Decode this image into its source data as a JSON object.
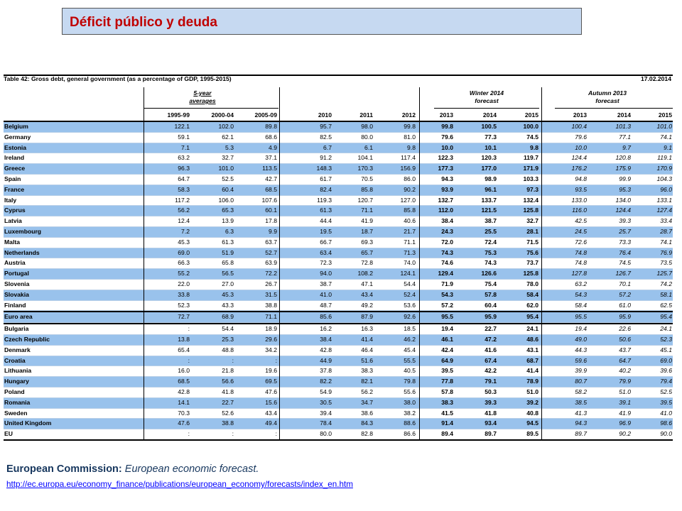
{
  "title": "Déficit público y deuda",
  "table": {
    "name": "Table 42:   Gross debt, general government (as a percentage of GDP, 1995-2015)",
    "date": "17.02.2014",
    "group_5yr": "5-year",
    "group_5yr_2": "averages",
    "group_winter": "Winter 2014",
    "group_winter_2": "forecast",
    "group_autumn": "Autumn 2013",
    "group_autumn_2": "forecast",
    "columns": [
      "1995-99",
      "2000-04",
      "2005-09",
      "2010",
      "2011",
      "2012",
      "2013",
      "2014",
      "2015",
      "2013",
      "2014",
      "2015"
    ],
    "rows": [
      {
        "name": "Belgium",
        "vals": [
          "122.1",
          "102.0",
          "89.8",
          "95.7",
          "98.0",
          "99.8",
          "99.8",
          "100.5",
          "100.0",
          "100.4",
          "101.3",
          "101.0"
        ]
      },
      {
        "name": "Germany",
        "vals": [
          "59.1",
          "62.1",
          "68.6",
          "82.5",
          "80.0",
          "81.0",
          "79.6",
          "77.3",
          "74.5",
          "79.6",
          "77.1",
          "74.1"
        ]
      },
      {
        "name": "Estonia",
        "vals": [
          "7.1",
          "5.3",
          "4.9",
          "6.7",
          "6.1",
          "9.8",
          "10.0",
          "10.1",
          "9.8",
          "10.0",
          "9.7",
          "9.1"
        ]
      },
      {
        "name": "Ireland",
        "vals": [
          "63.2",
          "32.7",
          "37.1",
          "91.2",
          "104.1",
          "117.4",
          "122.3",
          "120.3",
          "119.7",
          "124.4",
          "120.8",
          "119.1"
        ]
      },
      {
        "name": "Greece",
        "vals": [
          "96.3",
          "101.0",
          "113.5",
          "148.3",
          "170.3",
          "156.9",
          "177.3",
          "177.0",
          "171.9",
          "176.2",
          "175.9",
          "170.9"
        ]
      },
      {
        "name": "Spain",
        "vals": [
          "64.7",
          "52.5",
          "42.7",
          "61.7",
          "70.5",
          "86.0",
          "94.3",
          "98.9",
          "103.3",
          "94.8",
          "99.9",
          "104.3"
        ]
      },
      {
        "name": "France",
        "vals": [
          "58.3",
          "60.4",
          "68.5",
          "82.4",
          "85.8",
          "90.2",
          "93.9",
          "96.1",
          "97.3",
          "93.5",
          "95.3",
          "96.0"
        ]
      },
      {
        "name": "Italy",
        "vals": [
          "117.2",
          "106.0",
          "107.6",
          "119.3",
          "120.7",
          "127.0",
          "132.7",
          "133.7",
          "132.4",
          "133.0",
          "134.0",
          "133.1"
        ]
      },
      {
        "name": "Cyprus",
        "vals": [
          "56.2",
          "65.3",
          "60.1",
          "61.3",
          "71.1",
          "85.8",
          "112.0",
          "121.5",
          "125.8",
          "116.0",
          "124.4",
          "127.4"
        ]
      },
      {
        "name": "Latvia",
        "vals": [
          "12.4",
          "13.9",
          "17.8",
          "44.4",
          "41.9",
          "40.6",
          "38.4",
          "38.7",
          "32.7",
          "42.5",
          "39.3",
          "33.4"
        ]
      },
      {
        "name": "Luxembourg",
        "vals": [
          "7.2",
          "6.3",
          "9.9",
          "19.5",
          "18.7",
          "21.7",
          "24.3",
          "25.5",
          "28.1",
          "24.5",
          "25.7",
          "28.7"
        ]
      },
      {
        "name": "Malta",
        "vals": [
          "45.3",
          "61.3",
          "63.7",
          "66.7",
          "69.3",
          "71.1",
          "72.0",
          "72.4",
          "71.5",
          "72.6",
          "73.3",
          "74.1"
        ]
      },
      {
        "name": "Netherlands",
        "vals": [
          "69.0",
          "51.9",
          "52.7",
          "63.4",
          "65.7",
          "71.3",
          "74.3",
          "75.3",
          "75.6",
          "74.8",
          "76.4",
          "76.9"
        ]
      },
      {
        "name": "Austria",
        "vals": [
          "66.3",
          "65.8",
          "63.9",
          "72.3",
          "72.8",
          "74.0",
          "74.6",
          "74.3",
          "73.7",
          "74.8",
          "74.5",
          "73.5"
        ]
      },
      {
        "name": "Portugal",
        "vals": [
          "55.2",
          "56.5",
          "72.2",
          "94.0",
          "108.2",
          "124.1",
          "129.4",
          "126.6",
          "125.8",
          "127.8",
          "126.7",
          "125.7"
        ]
      },
      {
        "name": "Slovenia",
        "vals": [
          "22.0",
          "27.0",
          "26.7",
          "38.7",
          "47.1",
          "54.4",
          "71.9",
          "75.4",
          "78.0",
          "63.2",
          "70.1",
          "74.2"
        ]
      },
      {
        "name": "Slovakia",
        "vals": [
          "33.8",
          "45.3",
          "31.5",
          "41.0",
          "43.4",
          "52.4",
          "54.3",
          "57.8",
          "58.4",
          "54.3",
          "57.2",
          "58.1"
        ]
      },
      {
        "name": "Finland",
        "vals": [
          "52.3",
          "43.3",
          "38.8",
          "48.7",
          "49.2",
          "53.6",
          "57.2",
          "60.4",
          "62.0",
          "58.4",
          "61.0",
          "62.5"
        ]
      },
      {
        "name": "Euro area",
        "vals": [
          "72.7",
          "68.9",
          "71.1",
          "85.6",
          "87.9",
          "92.6",
          "95.5",
          "95.9",
          "95.4",
          "95.5",
          "95.9",
          "95.4"
        ]
      },
      {
        "name": "Bulgaria",
        "vals": [
          ":",
          "54.4",
          "18.9",
          "16.2",
          "16.3",
          "18.5",
          "19.4",
          "22.7",
          "24.1",
          "19.4",
          "22.6",
          "24.1"
        ]
      },
      {
        "name": "Czech Republic",
        "vals": [
          "13.8",
          "25.3",
          "29.6",
          "38.4",
          "41.4",
          "46.2",
          "46.1",
          "47.2",
          "48.6",
          "49.0",
          "50.6",
          "52.3"
        ]
      },
      {
        "name": "Denmark",
        "vals": [
          "65.4",
          "48.8",
          "34.2",
          "42.8",
          "46.4",
          "45.4",
          "42.4",
          "41.6",
          "43.1",
          "44.3",
          "43.7",
          "45.1"
        ]
      },
      {
        "name": "Croatia",
        "vals": [
          ":",
          ":",
          ":",
          "44.9",
          "51.6",
          "55.5",
          "64.9",
          "67.4",
          "68.7",
          "59.6",
          "64.7",
          "69.0"
        ]
      },
      {
        "name": "Lithuania",
        "vals": [
          "16.0",
          "21.8",
          "19.6",
          "37.8",
          "38.3",
          "40.5",
          "39.5",
          "42.2",
          "41.4",
          "39.9",
          "40.2",
          "39.6"
        ]
      },
      {
        "name": "Hungary",
        "vals": [
          "68.5",
          "56.6",
          "69.5",
          "82.2",
          "82.1",
          "79.8",
          "77.8",
          "79.1",
          "78.9",
          "80.7",
          "79.9",
          "79.4"
        ]
      },
      {
        "name": "Poland",
        "vals": [
          "42.8",
          "41.8",
          "47.6",
          "54.9",
          "56.2",
          "55.6",
          "57.8",
          "50.3",
          "51.0",
          "58.2",
          "51.0",
          "52.5"
        ]
      },
      {
        "name": "Romania",
        "vals": [
          "14.1",
          "22.7",
          "15.6",
          "30.5",
          "34.7",
          "38.0",
          "38.3",
          "39.3",
          "39.2",
          "38.5",
          "39.1",
          "39.5"
        ]
      },
      {
        "name": "Sweden",
        "vals": [
          "70.3",
          "52.6",
          "43.4",
          "39.4",
          "38.6",
          "38.2",
          "41.5",
          "41.8",
          "40.8",
          "41.3",
          "41.9",
          "41.0"
        ]
      },
      {
        "name": "United Kingdom",
        "vals": [
          "47.6",
          "38.8",
          "49.4",
          "78.4",
          "84.3",
          "88.6",
          "91.4",
          "93.4",
          "94.5",
          "94.3",
          "96.9",
          "98.6"
        ]
      },
      {
        "name": "EU",
        "vals": [
          ":",
          ":",
          ":",
          "80.0",
          "82.8",
          "86.6",
          "89.4",
          "89.7",
          "89.5",
          "89.7",
          "90.2",
          "90.0"
        ]
      }
    ]
  },
  "source_label": "European Commission:",
  "source_text": " European economic forecast.",
  "source_url": "http://ec.europa.eu/economy_finance/publications/european_economy/forecasts/index_en.htm",
  "colors": {
    "title": "#c00000",
    "title_bg": "#c6d9f1",
    "row_blue": "#99c2ec",
    "link": "#0000ff",
    "source": "#17375e"
  }
}
